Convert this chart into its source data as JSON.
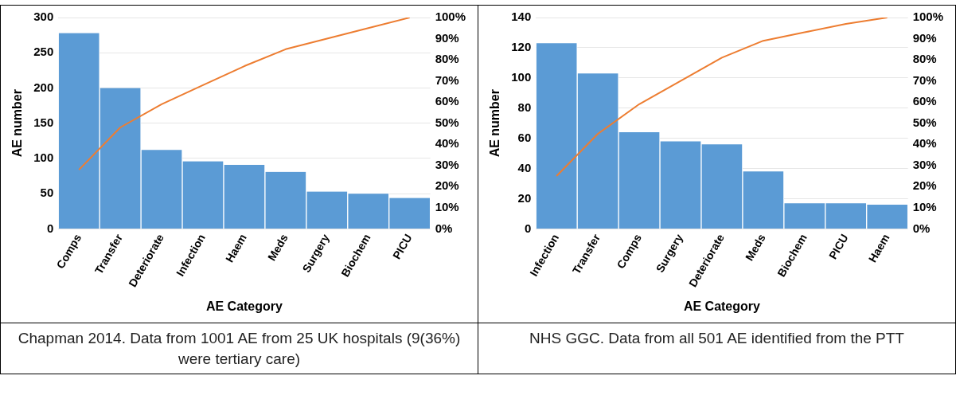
{
  "chart_data": [
    {
      "type": "bar",
      "xlabel": "AE Category",
      "ylabel": "AE number",
      "categories": [
        "Comps",
        "Transfer",
        "Deteriorate",
        "Infection",
        "Haem",
        "Meds",
        "Surgery",
        "Biochem",
        "PICU"
      ],
      "series": [
        {
          "color": "#5b9bd5",
          "values": [
            278,
            200,
            112,
            96,
            91,
            81,
            53,
            50,
            44
          ]
        },
        {
          "type": "line",
          "axis": "y2",
          "color": "#ed7d31",
          "values": [
            28,
            48,
            59,
            68,
            77,
            85,
            90,
            95,
            100
          ]
        }
      ],
      "ylim": [
        0,
        300
      ],
      "yticks": [
        0,
        50,
        100,
        150,
        200,
        250,
        300
      ],
      "y2lim": [
        0,
        100
      ],
      "y2ticks": [
        {
          "value": 0,
          "label": "0%"
        },
        {
          "value": 10,
          "label": "10%"
        },
        {
          "value": 20,
          "label": "20%"
        },
        {
          "value": 30,
          "label": "30%"
        },
        {
          "value": 40,
          "label": "40%"
        },
        {
          "value": 50,
          "label": "50%"
        },
        {
          "value": 60,
          "label": "60%"
        },
        {
          "value": 70,
          "label": "70%"
        },
        {
          "value": 80,
          "label": "80%"
        },
        {
          "value": 90,
          "label": "90%"
        },
        {
          "value": 100,
          "label": "100%"
        }
      ],
      "grid": "y",
      "legend": false,
      "marker": "none",
      "annotations": [
        "Chapman 2014. Data from 1001 AE from 25 UK hospitals (9(36%) were tertiary care)"
      ]
    },
    {
      "type": "bar",
      "xlabel": "AE Category",
      "ylabel": "AE number",
      "categories": [
        "Infection",
        "Transfer",
        "Comps",
        "Surgery",
        "Deteriorate",
        "Meds",
        "Biochem",
        "PICU",
        "Haem"
      ],
      "series": [
        {
          "color": "#5b9bd5",
          "values": [
            123,
            103,
            64,
            58,
            56,
            38,
            17,
            17,
            16
          ]
        },
        {
          "type": "line",
          "axis": "y2",
          "color": "#ed7d31",
          "values": [
            25,
            45,
            59,
            70,
            81,
            89,
            93,
            97,
            100
          ]
        }
      ],
      "ylim": [
        0,
        140
      ],
      "yticks": [
        0,
        20,
        40,
        60,
        80,
        100,
        120,
        140
      ],
      "y2lim": [
        0,
        100
      ],
      "y2ticks": [
        {
          "value": 0,
          "label": "0%"
        },
        {
          "value": 10,
          "label": "10%"
        },
        {
          "value": 20,
          "label": "20%"
        },
        {
          "value": 30,
          "label": "30%"
        },
        {
          "value": 40,
          "label": "40%"
        },
        {
          "value": 50,
          "label": "50%"
        },
        {
          "value": 60,
          "label": "60%"
        },
        {
          "value": 70,
          "label": "70%"
        },
        {
          "value": 80,
          "label": "80%"
        },
        {
          "value": 90,
          "label": "90%"
        },
        {
          "value": 100,
          "label": "100%"
        }
      ],
      "grid": "y",
      "legend": false,
      "marker": "none",
      "annotations": [
        "NHS GGC. Data from all 501 AE identified from the PTT"
      ]
    }
  ]
}
